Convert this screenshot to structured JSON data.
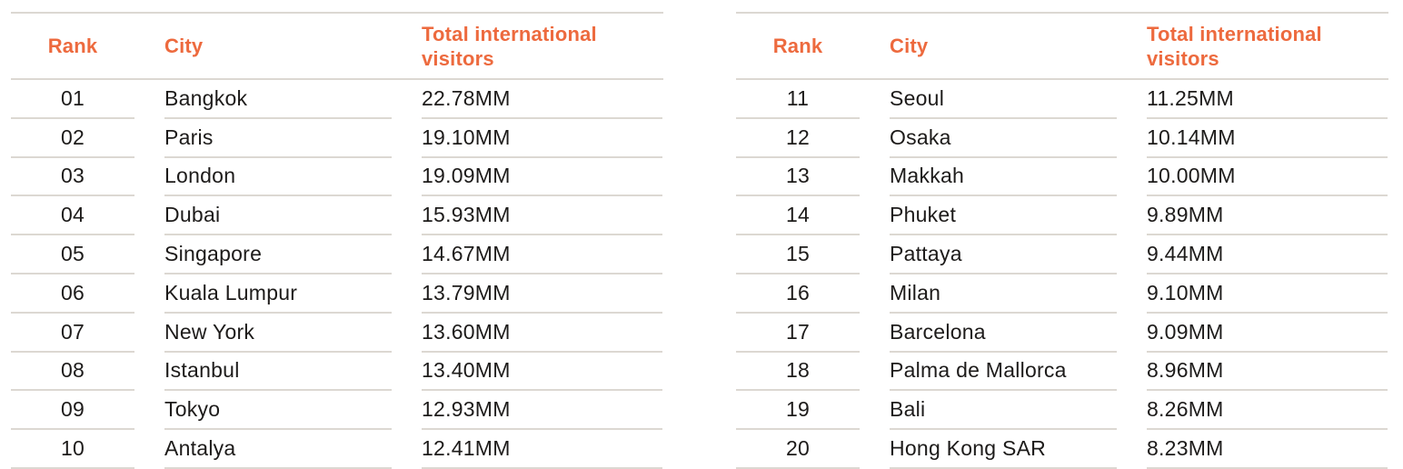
{
  "accent_color": "#ED6A3E",
  "line_color": "#DCD8D2",
  "text_color": "#1D1B1A",
  "tables": [
    {
      "headers": {
        "rank": "Rank",
        "city": "City",
        "visitors": "Total international visitors"
      },
      "rows": [
        {
          "rank": "01",
          "city": "Bangkok",
          "visitors": "22.78MM"
        },
        {
          "rank": "02",
          "city": "Paris",
          "visitors": "19.10MM"
        },
        {
          "rank": "03",
          "city": "London",
          "visitors": "19.09MM"
        },
        {
          "rank": "04",
          "city": "Dubai",
          "visitors": "15.93MM"
        },
        {
          "rank": "05",
          "city": "Singapore",
          "visitors": "14.67MM"
        },
        {
          "rank": "06",
          "city": "Kuala Lumpur",
          "visitors": "13.79MM"
        },
        {
          "rank": "07",
          "city": "New York",
          "visitors": "13.60MM"
        },
        {
          "rank": "08",
          "city": "Istanbul",
          "visitors": "13.40MM"
        },
        {
          "rank": "09",
          "city": "Tokyo",
          "visitors": "12.93MM"
        },
        {
          "rank": "10",
          "city": "Antalya",
          "visitors": "12.41MM"
        }
      ]
    },
    {
      "headers": {
        "rank": "Rank",
        "city": "City",
        "visitors": "Total international visitors"
      },
      "rows": [
        {
          "rank": "11",
          "city": "Seoul",
          "visitors": "11.25MM"
        },
        {
          "rank": "12",
          "city": "Osaka",
          "visitors": "10.14MM"
        },
        {
          "rank": "13",
          "city": "Makkah",
          "visitors": "10.00MM"
        },
        {
          "rank": "14",
          "city": "Phuket",
          "visitors": "9.89MM"
        },
        {
          "rank": "15",
          "city": "Pattaya",
          "visitors": "9.44MM"
        },
        {
          "rank": "16",
          "city": "Milan",
          "visitors": "9.10MM"
        },
        {
          "rank": "17",
          "city": "Barcelona",
          "visitors": "9.09MM"
        },
        {
          "rank": "18",
          "city": "Palma de Mallorca",
          "visitors": "8.96MM"
        },
        {
          "rank": "19",
          "city": "Bali",
          "visitors": "8.26MM"
        },
        {
          "rank": "20",
          "city": "Hong Kong SAR",
          "visitors": "8.23MM"
        }
      ]
    }
  ],
  "chart_data": [
    {
      "type": "table",
      "title": "Total international visitors by city, ranks 1-10",
      "columns": [
        "Rank",
        "City",
        "Total international visitors"
      ],
      "rows": [
        [
          "01",
          "Bangkok",
          "22.78MM"
        ],
        [
          "02",
          "Paris",
          "19.10MM"
        ],
        [
          "03",
          "London",
          "19.09MM"
        ],
        [
          "04",
          "Dubai",
          "15.93MM"
        ],
        [
          "05",
          "Singapore",
          "14.67MM"
        ],
        [
          "06",
          "Kuala Lumpur",
          "13.79MM"
        ],
        [
          "07",
          "New York",
          "13.60MM"
        ],
        [
          "08",
          "Istanbul",
          "13.40MM"
        ],
        [
          "09",
          "Tokyo",
          "12.93MM"
        ],
        [
          "10",
          "Antalya",
          "12.41MM"
        ]
      ],
      "values_mm": [
        22.78,
        19.1,
        19.09,
        15.93,
        14.67,
        13.79,
        13.6,
        13.4,
        12.93,
        12.41
      ]
    },
    {
      "type": "table",
      "title": "Total international visitors by city, ranks 11-20",
      "columns": [
        "Rank",
        "City",
        "Total international visitors"
      ],
      "rows": [
        [
          "11",
          "Seoul",
          "11.25MM"
        ],
        [
          "12",
          "Osaka",
          "10.14MM"
        ],
        [
          "13",
          "Makkah",
          "10.00MM"
        ],
        [
          "14",
          "Phuket",
          "9.89MM"
        ],
        [
          "15",
          "Pattaya",
          "9.44MM"
        ],
        [
          "16",
          "Milan",
          "9.10MM"
        ],
        [
          "17",
          "Barcelona",
          "9.09MM"
        ],
        [
          "18",
          "Palma de Mallorca",
          "8.96MM"
        ],
        [
          "19",
          "Bali",
          "8.26MM"
        ],
        [
          "20",
          "Hong Kong SAR",
          "8.23MM"
        ]
      ],
      "values_mm": [
        11.25,
        10.14,
        10.0,
        9.89,
        9.44,
        9.1,
        9.09,
        8.96,
        8.26,
        8.23
      ]
    }
  ]
}
